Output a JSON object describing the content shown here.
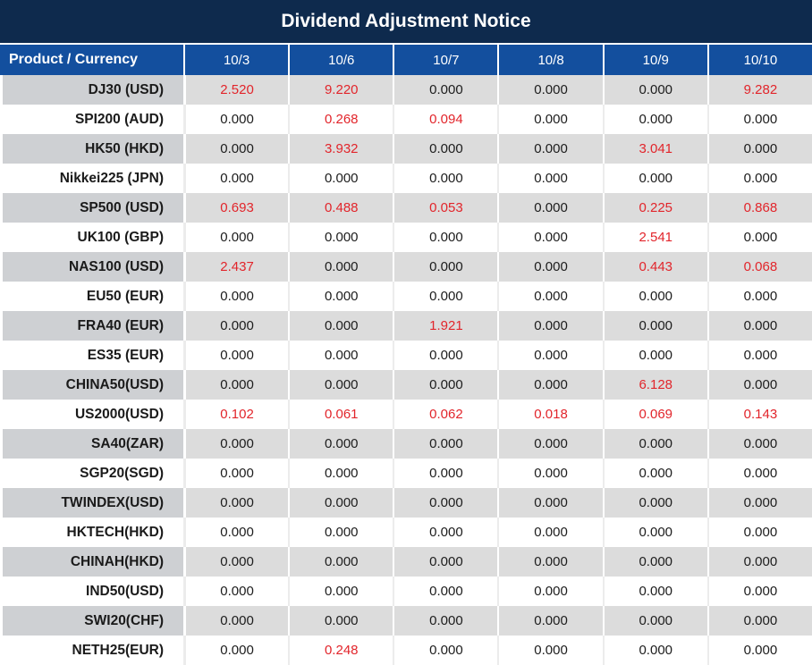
{
  "chart_data": {
    "type": "table",
    "title": "Dividend Adjustment Notice",
    "header": {
      "product_label": "Product / Currency",
      "dates": [
        "10/3",
        "10/6",
        "10/7",
        "10/8",
        "10/9",
        "10/10"
      ]
    },
    "rows": [
      {
        "product": "DJ30 (USD)",
        "values": [
          "2.520",
          "9.220",
          "0.000",
          "0.000",
          "0.000",
          "9.282"
        ]
      },
      {
        "product": "SPI200 (AUD)",
        "values": [
          "0.000",
          "0.268",
          "0.094",
          "0.000",
          "0.000",
          "0.000"
        ]
      },
      {
        "product": "HK50 (HKD)",
        "values": [
          "0.000",
          "3.932",
          "0.000",
          "0.000",
          "3.041",
          "0.000"
        ]
      },
      {
        "product": "Nikkei225 (JPN)",
        "values": [
          "0.000",
          "0.000",
          "0.000",
          "0.000",
          "0.000",
          "0.000"
        ]
      },
      {
        "product": "SP500 (USD)",
        "values": [
          "0.693",
          "0.488",
          "0.053",
          "0.000",
          "0.225",
          "0.868"
        ]
      },
      {
        "product": "UK100 (GBP)",
        "values": [
          "0.000",
          "0.000",
          "0.000",
          "0.000",
          "2.541",
          "0.000"
        ]
      },
      {
        "product": "NAS100 (USD)",
        "values": [
          "2.437",
          "0.000",
          "0.000",
          "0.000",
          "0.443",
          "0.068"
        ]
      },
      {
        "product": "EU50 (EUR)",
        "values": [
          "0.000",
          "0.000",
          "0.000",
          "0.000",
          "0.000",
          "0.000"
        ]
      },
      {
        "product": "FRA40 (EUR)",
        "values": [
          "0.000",
          "0.000",
          "1.921",
          "0.000",
          "0.000",
          "0.000"
        ]
      },
      {
        "product": "ES35 (EUR)",
        "values": [
          "0.000",
          "0.000",
          "0.000",
          "0.000",
          "0.000",
          "0.000"
        ]
      },
      {
        "product": "CHINA50(USD)",
        "values": [
          "0.000",
          "0.000",
          "0.000",
          "0.000",
          "6.128",
          "0.000"
        ]
      },
      {
        "product": "US2000(USD)",
        "values": [
          "0.102",
          "0.061",
          "0.062",
          "0.018",
          "0.069",
          "0.143"
        ]
      },
      {
        "product": "SA40(ZAR)",
        "values": [
          "0.000",
          "0.000",
          "0.000",
          "0.000",
          "0.000",
          "0.000"
        ]
      },
      {
        "product": "SGP20(SGD)",
        "values": [
          "0.000",
          "0.000",
          "0.000",
          "0.000",
          "0.000",
          "0.000"
        ]
      },
      {
        "product": "TWINDEX(USD)",
        "values": [
          "0.000",
          "0.000",
          "0.000",
          "0.000",
          "0.000",
          "0.000"
        ]
      },
      {
        "product": "HKTECH(HKD)",
        "values": [
          "0.000",
          "0.000",
          "0.000",
          "0.000",
          "0.000",
          "0.000"
        ]
      },
      {
        "product": "CHINAH(HKD)",
        "values": [
          "0.000",
          "0.000",
          "0.000",
          "0.000",
          "0.000",
          "0.000"
        ]
      },
      {
        "product": "IND50(USD)",
        "values": [
          "0.000",
          "0.000",
          "0.000",
          "0.000",
          "0.000",
          "0.000"
        ]
      },
      {
        "product": "SWI20(CHF)",
        "values": [
          "0.000",
          "0.000",
          "0.000",
          "0.000",
          "0.000",
          "0.000"
        ]
      },
      {
        "product": "NETH25(EUR)",
        "values": [
          "0.000",
          "0.248",
          "0.000",
          "0.000",
          "0.000",
          "0.000"
        ]
      }
    ],
    "zero_value": "0.000",
    "colors": {
      "title_bg": "#0e2a4d",
      "header_bg": "#134f9e",
      "label_gray": "#ced0d3",
      "cell_gray": "#dcdcdc",
      "nonzero_red": "#e2252b"
    },
    "layout_hints": {
      "highlight_rule": "non-zero values rendered in red",
      "row_striping": "odd rows gray, even rows white"
    }
  }
}
